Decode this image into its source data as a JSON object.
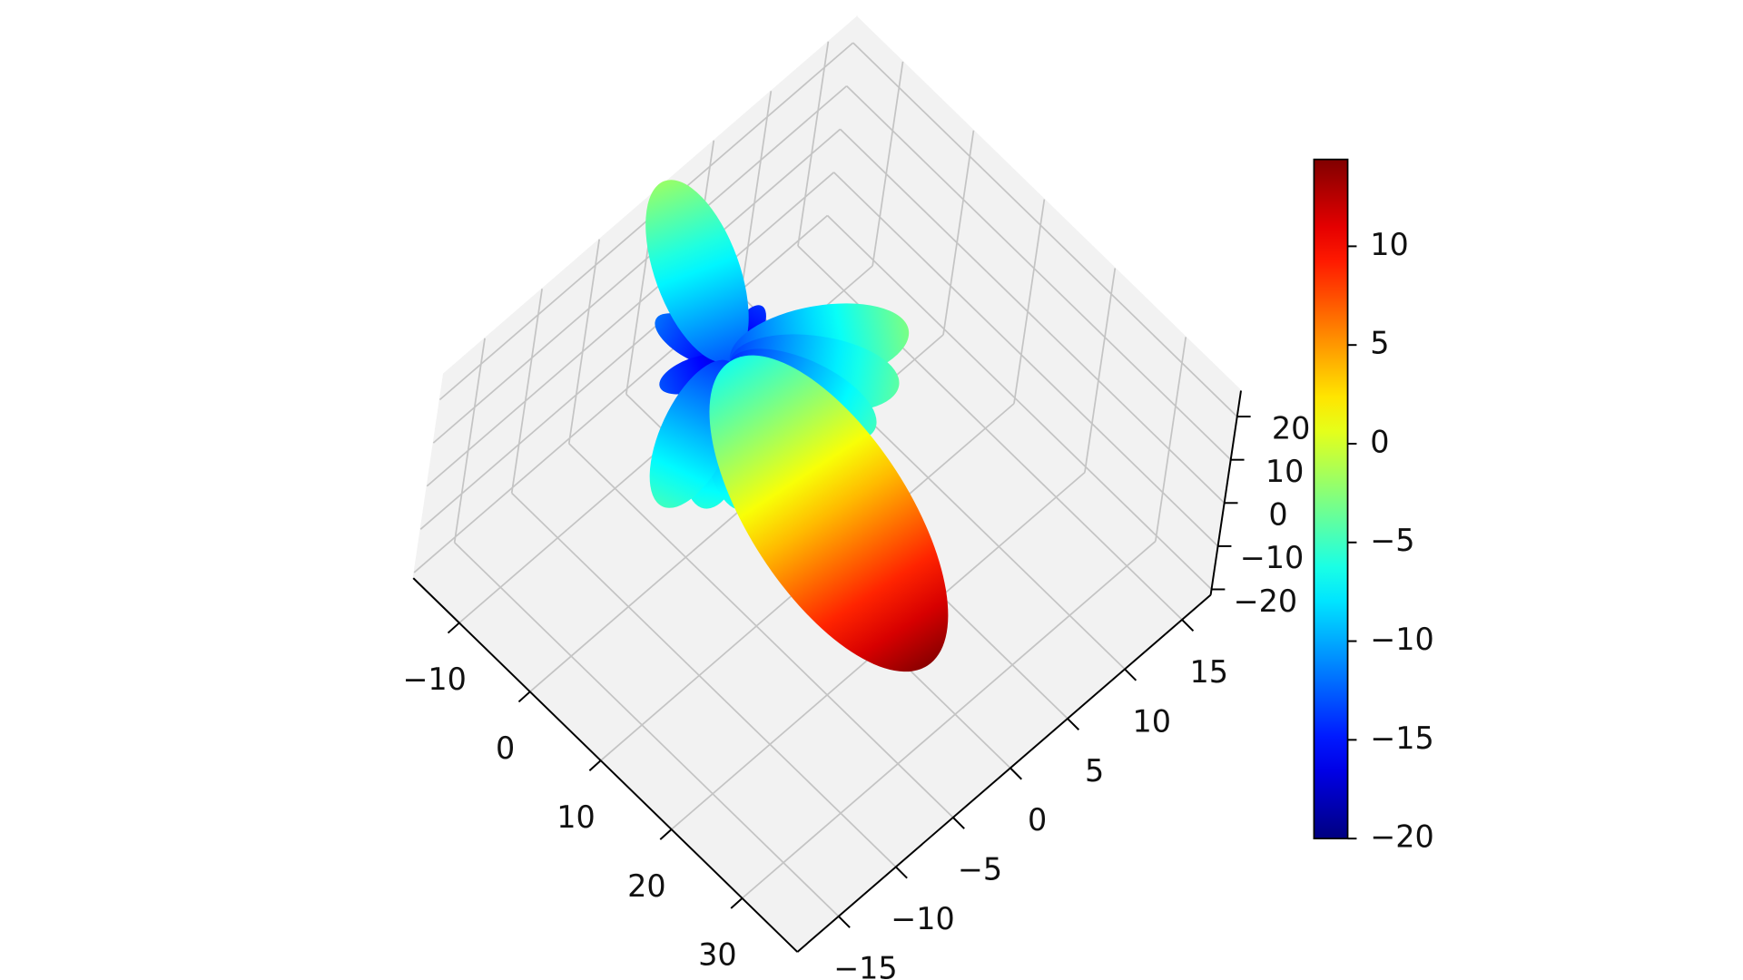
{
  "chart_data": {
    "type": "surface3d",
    "direction": [
      -150,
      -60,
      160,
      -110,
      100,
      85,
      115,
      -10,
      8,
      25,
      57
    ],
    "values": [
      -12,
      -14,
      -13,
      -2,
      -6,
      -6,
      -5,
      -3,
      -4,
      -5,
      14
    ],
    "xlim": [
      -16.5,
      37.8
    ],
    "xticks": [
      {
        "value": -10,
        "label": "−10"
      },
      0,
      10,
      20,
      30
    ],
    "ylim": [
      -18.6,
      17.5
    ],
    "yticks": [
      {
        "value": -15,
        "label": "−15"
      },
      {
        "value": -10,
        "label": "−10"
      },
      {
        "value": -5,
        "label": "−5"
      },
      0,
      5,
      10,
      15
    ],
    "zlim": [
      -21.3,
      26
    ],
    "zticks": [
      {
        "value": -20,
        "label": "−20"
      },
      {
        "value": -10,
        "label": "−10"
      },
      0,
      10,
      20
    ],
    "grid": true,
    "colorbar": {
      "colormap": "jet",
      "lim": [
        -20,
        14.4
      ],
      "ticks": [
        {
          "value": -20,
          "label": "−20"
        },
        {
          "value": -15,
          "label": "−15"
        },
        {
          "value": -10,
          "label": "−10"
        },
        {
          "value": -5,
          "label": "−5"
        },
        0,
        5,
        10
      ]
    }
  }
}
